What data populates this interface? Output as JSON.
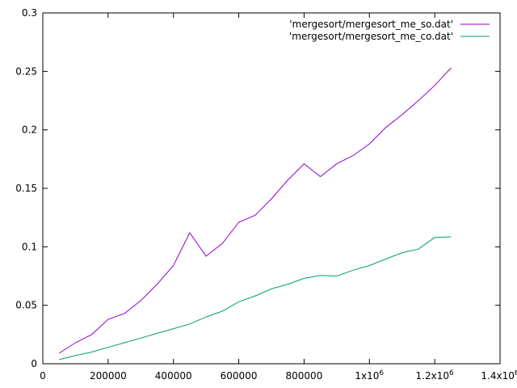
{
  "chart_data": {
    "type": "line",
    "title": "",
    "xlabel": "",
    "ylabel": "",
    "xlim": [
      0,
      1400000
    ],
    "ylim": [
      0,
      0.3
    ],
    "grid": false,
    "legend_position": "top-right",
    "x_ticks": [
      {
        "value": 0,
        "label": "0"
      },
      {
        "value": 200000,
        "label": "200000"
      },
      {
        "value": 400000,
        "label": "400000"
      },
      {
        "value": 600000,
        "label": "600000"
      },
      {
        "value": 800000,
        "label": "800000"
      },
      {
        "value": 1000000,
        "label": "1x10",
        "sup": "6"
      },
      {
        "value": 1200000,
        "label": "1.2x10",
        "sup": "6"
      },
      {
        "value": 1400000,
        "label": "1.4x10",
        "sup": "6"
      }
    ],
    "y_ticks": [
      {
        "value": 0,
        "label": "0"
      },
      {
        "value": 0.05,
        "label": "0.05"
      },
      {
        "value": 0.1,
        "label": "0.1"
      },
      {
        "value": 0.15,
        "label": "0.15"
      },
      {
        "value": 0.2,
        "label": "0.2"
      },
      {
        "value": 0.25,
        "label": "0.25"
      },
      {
        "value": 0.3,
        "label": "0.3"
      }
    ],
    "series": [
      {
        "name": "'mergesort/mergesort_me_so.dat'",
        "color": "#9400d3",
        "points": [
          [
            50000,
            0.009
          ],
          [
            100000,
            0.018
          ],
          [
            150000,
            0.025
          ],
          [
            200000,
            0.038
          ],
          [
            250000,
            0.043
          ],
          [
            300000,
            0.054
          ],
          [
            350000,
            0.068
          ],
          [
            400000,
            0.084
          ],
          [
            450000,
            0.112
          ],
          [
            500000,
            0.092
          ],
          [
            550000,
            0.103
          ],
          [
            600000,
            0.121
          ],
          [
            650000,
            0.127
          ],
          [
            700000,
            0.141
          ],
          [
            750000,
            0.157
          ],
          [
            800000,
            0.171
          ],
          [
            850000,
            0.16
          ],
          [
            900000,
            0.171
          ],
          [
            950000,
            0.178
          ],
          [
            1000000,
            0.188
          ],
          [
            1050000,
            0.202
          ],
          [
            1100000,
            0.213
          ],
          [
            1150000,
            0.225
          ],
          [
            1200000,
            0.238
          ],
          [
            1250000,
            0.253
          ]
        ]
      },
      {
        "name": "'mergesort/mergesort_me_co.dat'",
        "color": "#009e73",
        "points": [
          [
            50000,
            0.0035
          ],
          [
            100000,
            0.007
          ],
          [
            150000,
            0.01
          ],
          [
            200000,
            0.014
          ],
          [
            250000,
            0.018
          ],
          [
            300000,
            0.022
          ],
          [
            350000,
            0.026
          ],
          [
            400000,
            0.03
          ],
          [
            450000,
            0.034
          ],
          [
            500000,
            0.04
          ],
          [
            550000,
            0.045
          ],
          [
            600000,
            0.053
          ],
          [
            650000,
            0.058
          ],
          [
            700000,
            0.064
          ],
          [
            750000,
            0.068
          ],
          [
            800000,
            0.073
          ],
          [
            850000,
            0.0755
          ],
          [
            900000,
            0.075
          ],
          [
            950000,
            0.08
          ],
          [
            1000000,
            0.084
          ],
          [
            1050000,
            0.0895
          ],
          [
            1100000,
            0.095
          ],
          [
            1150000,
            0.098
          ],
          [
            1200000,
            0.108
          ],
          [
            1250000,
            0.1085
          ]
        ]
      }
    ]
  }
}
